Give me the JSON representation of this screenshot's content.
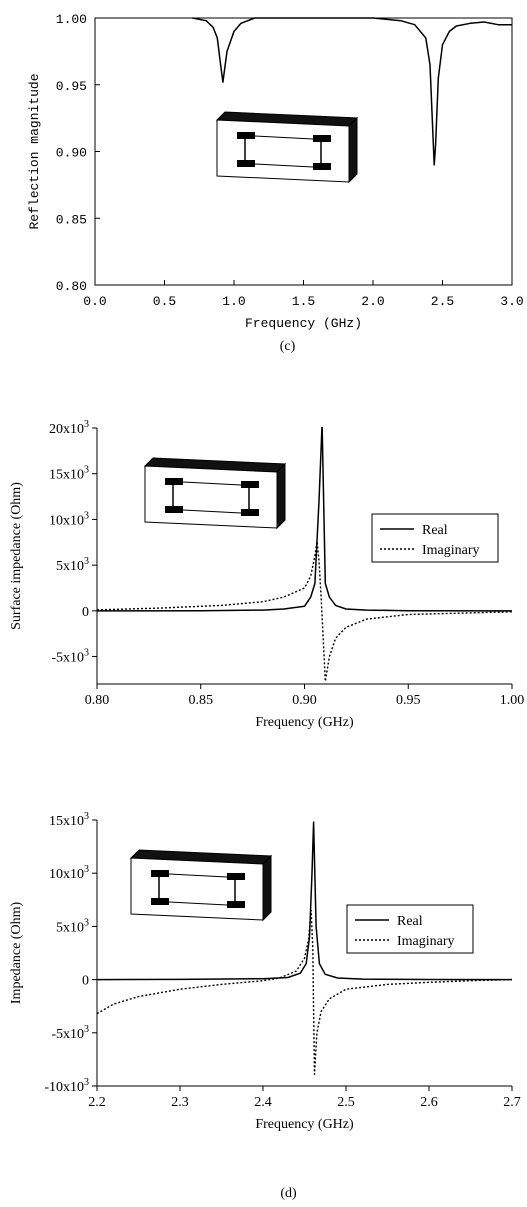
{
  "chart_data": [
    {
      "type": "line",
      "caption": "(c)",
      "xlabel": "Frequency (GHz)",
      "ylabel": "Reflection magnitude",
      "xlim": [
        0.0,
        3.0
      ],
      "ylim": [
        0.8,
        1.0
      ],
      "xticks": [
        "0.0",
        "0.5",
        "1.0",
        "1.5",
        "2.0",
        "2.5",
        "3.0"
      ],
      "yticks": [
        "0.80",
        "0.85",
        "0.90",
        "0.95",
        "1.00"
      ],
      "series": [
        {
          "x": [
            0.7,
            0.8,
            0.85,
            0.88,
            0.9,
            0.92,
            0.95,
            1.0,
            1.05,
            1.15,
            1.5,
            2.0,
            2.2,
            2.3,
            2.38,
            2.41,
            2.44,
            2.45,
            2.47,
            2.5,
            2.55,
            2.6,
            2.7,
            2.8,
            2.9,
            3.0
          ],
          "y": [
            1.0,
            0.998,
            0.993,
            0.985,
            0.968,
            0.952,
            0.975,
            0.99,
            0.996,
            1.0,
            1.0,
            1.0,
            0.998,
            0.995,
            0.985,
            0.965,
            0.89,
            0.905,
            0.955,
            0.98,
            0.99,
            0.994,
            0.996,
            0.997,
            0.995,
            0.995
          ]
        }
      ]
    },
    {
      "type": "line",
      "xlabel": "Frequency (GHz)",
      "ylabel": "Surface impedance (Ohm)",
      "xlim": [
        0.8,
        1.0
      ],
      "ylim": [
        -8000,
        20000
      ],
      "xticks": [
        "0.80",
        "0.85",
        "0.90",
        "0.95",
        "1.00"
      ],
      "yticks": [
        {
          "v": -5000,
          "base": "-5x10",
          "exp": "3"
        },
        {
          "v": 0,
          "base": "0",
          "exp": ""
        },
        {
          "v": 5000,
          "base": "5x10",
          "exp": "3"
        },
        {
          "v": 10000,
          "base": "10x10",
          "exp": "3"
        },
        {
          "v": 15000,
          "base": "15x10",
          "exp": "3"
        },
        {
          "v": 20000,
          "base": "20x10",
          "exp": "3"
        }
      ],
      "legend": [
        "Real",
        "Imaginary"
      ],
      "series": [
        {
          "name": "Real",
          "style": "solid",
          "x": [
            0.8,
            0.85,
            0.88,
            0.89,
            0.9,
            0.903,
            0.905,
            0.907,
            0.9085,
            0.91,
            0.912,
            0.915,
            0.92,
            0.93,
            0.95,
            1.0
          ],
          "y": [
            0,
            20,
            80,
            200,
            500,
            1500,
            3000,
            12000,
            20500,
            3000,
            1500,
            600,
            200,
            80,
            20,
            0
          ]
        },
        {
          "name": "Imaginary",
          "style": "dotted",
          "x": [
            0.8,
            0.83,
            0.86,
            0.88,
            0.89,
            0.9,
            0.903,
            0.905,
            0.906,
            0.907,
            0.908,
            0.909,
            0.91,
            0.912,
            0.915,
            0.92,
            0.93,
            0.95,
            1.0
          ],
          "y": [
            100,
            300,
            600,
            1000,
            1500,
            2500,
            3800,
            6000,
            7600,
            5500,
            1500,
            -3000,
            -7700,
            -5000,
            -3000,
            -1800,
            -900,
            -400,
            -100
          ]
        }
      ]
    },
    {
      "type": "line",
      "caption": "(d)",
      "xlabel": "Frequency (GHz)",
      "ylabel": "Impedance (Ohm)",
      "xlim": [
        2.2,
        2.7
      ],
      "ylim": [
        -10000,
        15000
      ],
      "xticks": [
        "2.2",
        "2.3",
        "2.4",
        "2.5",
        "2.6",
        "2.7"
      ],
      "yticks": [
        {
          "v": -10000,
          "base": "-10x10",
          "exp": "3"
        },
        {
          "v": -5000,
          "base": "-5x10",
          "exp": "3"
        },
        {
          "v": 0,
          "base": "0",
          "exp": ""
        },
        {
          "v": 5000,
          "base": "5x10",
          "exp": "3"
        },
        {
          "v": 10000,
          "base": "10x10",
          "exp": "3"
        },
        {
          "v": 15000,
          "base": "15x10",
          "exp": "3"
        }
      ],
      "legend": [
        "Real",
        "Imaginary"
      ],
      "series": [
        {
          "name": "Real",
          "style": "solid",
          "x": [
            2.2,
            2.3,
            2.4,
            2.43,
            2.445,
            2.452,
            2.456,
            2.459,
            2.461,
            2.464,
            2.468,
            2.475,
            2.49,
            2.52,
            2.6,
            2.7
          ],
          "y": [
            0,
            20,
            80,
            200,
            600,
            1500,
            4000,
            10000,
            14800,
            5000,
            1500,
            500,
            150,
            50,
            10,
            0
          ],
          "note": ""
        },
        {
          "name": "Imaginary",
          "style": "dotted",
          "x": [
            2.2,
            2.22,
            2.25,
            2.3,
            2.35,
            2.4,
            2.42,
            2.44,
            2.45,
            2.455,
            2.458,
            2.46,
            2.461,
            2.462,
            2.465,
            2.47,
            2.48,
            2.5,
            2.55,
            2.6,
            2.65,
            2.7
          ],
          "y": [
            -3200,
            -2300,
            -1600,
            -900,
            -450,
            -100,
            150,
            800,
            2000,
            3800,
            6500,
            3000,
            -3000,
            -8900,
            -5000,
            -3000,
            -1800,
            -900,
            -450,
            -250,
            -100,
            0
          ]
        }
      ]
    }
  ]
}
